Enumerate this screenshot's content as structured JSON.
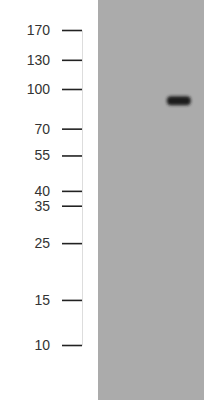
{
  "chart_data": {
    "type": "blot",
    "categories": [
      null,
      null
    ],
    "values": [
      null,
      90
    ],
    "color": "#1e1e1e",
    "log": "y",
    "ylim": [
      10,
      170
    ],
    "yticks": [
      170,
      130,
      100,
      70,
      55,
      40,
      35,
      25,
      15,
      10
    ],
    "tick_labels": "y"
  }
}
